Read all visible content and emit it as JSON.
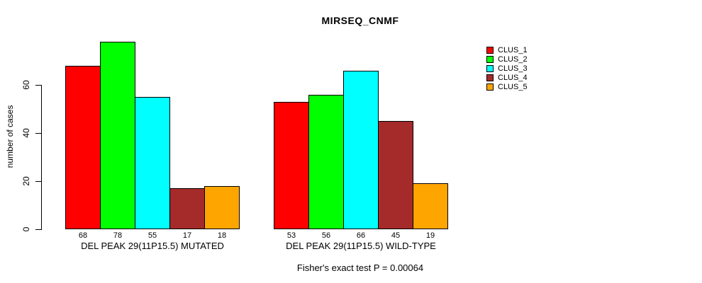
{
  "title": "MIRSEQ_CNMF",
  "annotation": "Fisher's exact test P = 0.00064",
  "chart_data": {
    "type": "bar",
    "title": "MIRSEQ_CNMF",
    "xlabel": "",
    "ylabel": "number of cases",
    "yticks": [
      0,
      20,
      40,
      60
    ],
    "ylim": [
      0,
      78
    ],
    "grid": false,
    "legend_position": "right",
    "bar_value_labels": true,
    "categories": [
      "DEL PEAK 29(11P15.5) MUTATED",
      "DEL PEAK 29(11P15.5) WILD-TYPE"
    ],
    "series": [
      {
        "name": "CLUS_1",
        "color": "#FF0000",
        "values": [
          68,
          53
        ]
      },
      {
        "name": "CLUS_2",
        "color": "#00FF00",
        "values": [
          78,
          56
        ]
      },
      {
        "name": "CLUS_3",
        "color": "#00FFFF",
        "values": [
          55,
          66
        ]
      },
      {
        "name": "CLUS_4",
        "color": "#A52A2A",
        "values": [
          17,
          45
        ]
      },
      {
        "name": "CLUS_5",
        "color": "#FFA500",
        "values": [
          18,
          19
        ]
      }
    ],
    "annotation": "Fisher's exact test P = 0.00064"
  }
}
